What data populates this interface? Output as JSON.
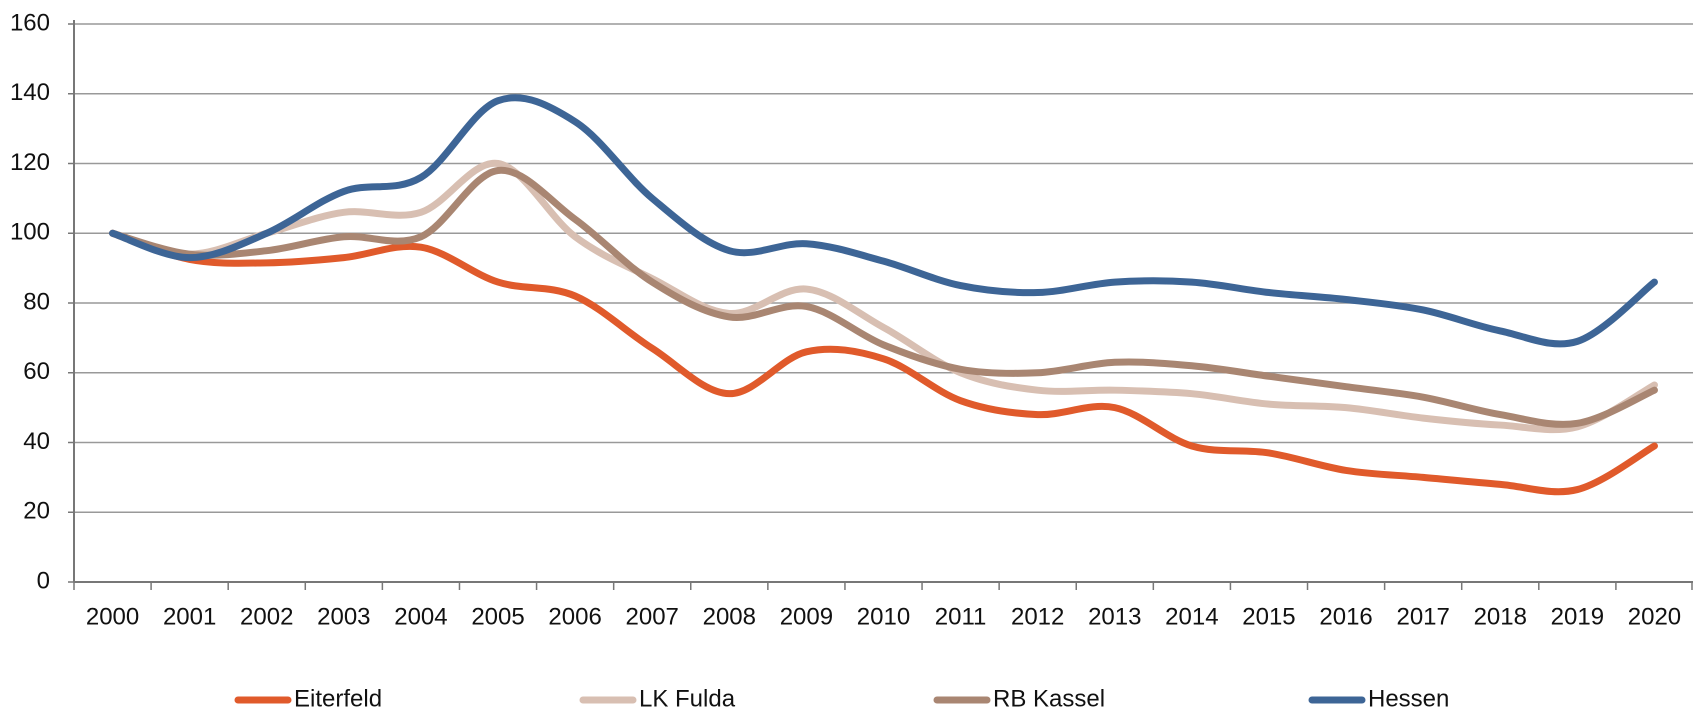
{
  "chart_data": {
    "type": "line",
    "categories": [
      "2000",
      "2001",
      "2002",
      "2003",
      "2004",
      "2005",
      "2006",
      "2007",
      "2008",
      "2009",
      "2010",
      "2011",
      "2012",
      "2013",
      "2014",
      "2015",
      "2016",
      "2017",
      "2018",
      "2019",
      "2020"
    ],
    "series": [
      {
        "name": "Eiterfeld",
        "color": "#e05a2b",
        "values": [
          100,
          92.5,
          91.5,
          93,
          96,
          86,
          82,
          67,
          54,
          66,
          64,
          52,
          48,
          50,
          39,
          37,
          32,
          30,
          28,
          26.5,
          39
        ]
      },
      {
        "name": "LK Fulda",
        "color": "#d8bfb2",
        "values": [
          100,
          94,
          100,
          106,
          106,
          120,
          99,
          87,
          77,
          84,
          73,
          60,
          55,
          55,
          54,
          51,
          50,
          47,
          45,
          44.5,
          56.5
        ]
      },
      {
        "name": "RB Kassel",
        "color": "#a98672",
        "values": [
          100,
          94,
          95,
          99,
          99,
          118,
          104,
          86,
          76,
          79,
          68,
          61,
          60,
          63,
          62,
          59,
          56,
          53,
          48,
          45.5,
          55
        ]
      },
      {
        "name": "Hessen",
        "color": "#3d6596",
        "values": [
          100,
          93,
          100,
          112,
          116,
          138,
          132,
          110,
          95,
          97,
          92,
          85,
          83,
          86,
          86,
          83,
          81,
          78,
          72,
          69,
          86
        ]
      }
    ],
    "ylim": [
      0,
      160
    ],
    "yticks": [
      0,
      20,
      40,
      60,
      80,
      100,
      120,
      140,
      160
    ],
    "grid": true
  }
}
